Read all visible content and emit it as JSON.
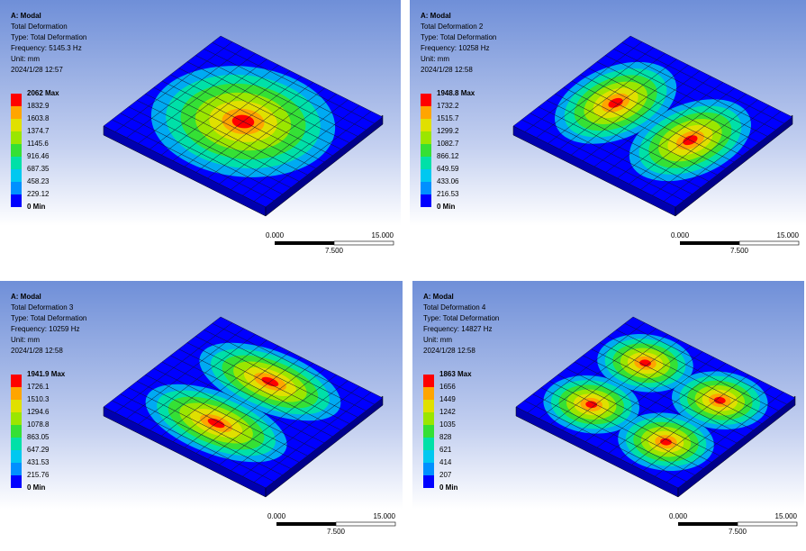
{
  "panels": [
    {
      "header": {
        "analysis": "A: Modal",
        "result": "Total Deformation",
        "type": "Type: Total Deformation",
        "frequency": "Frequency: 5145.3 Hz",
        "unit": "Unit: mm",
        "date": "2024/1/28 12:57"
      },
      "legend": [
        "2062 Max",
        "1832.9",
        "1603.8",
        "1374.7",
        "1145.6",
        "916.46",
        "687.35",
        "458.23",
        "229.12",
        "0 Min"
      ],
      "scale": {
        "start": "0.000",
        "end": "15.000",
        "mid": "7.500"
      }
    },
    {
      "header": {
        "analysis": "A: Modal",
        "result": "Total Deformation 2",
        "type": "Type: Total Deformation",
        "frequency": "Frequency: 10258 Hz",
        "unit": "Unit: mm",
        "date": "2024/1/28 12:58"
      },
      "legend": [
        "1948.8 Max",
        "1732.2",
        "1515.7",
        "1299.2",
        "1082.7",
        "866.12",
        "649.59",
        "433.06",
        "216.53",
        "0 Min"
      ],
      "scale": {
        "start": "0.000",
        "end": "15.000",
        "mid": "7.500"
      }
    },
    {
      "header": {
        "analysis": "A: Modal",
        "result": "Total Deformation 3",
        "type": "Type: Total Deformation",
        "frequency": "Frequency: 10259 Hz",
        "unit": "Unit: mm",
        "date": "2024/1/28 12:58"
      },
      "legend": [
        "1941.9 Max",
        "1726.1",
        "1510.3",
        "1294.6",
        "1078.8",
        "863.05",
        "647.29",
        "431.53",
        "215.76",
        "0 Min"
      ],
      "scale": {
        "start": "0.000",
        "end": "15.000",
        "mid": "7.500"
      }
    },
    {
      "header": {
        "analysis": "A: Modal",
        "result": "Total Deformation 4",
        "type": "Type: Total Deformation",
        "frequency": "Frequency: 14827 Hz",
        "unit": "Unit: mm",
        "date": "2024/1/28 12:58"
      },
      "legend": [
        "1863 Max",
        "1656",
        "1449",
        "1242",
        "1035",
        "828",
        "621",
        "414",
        "207",
        "0 Min"
      ],
      "scale": {
        "start": "0.000",
        "end": "15.000",
        "mid": "7.500"
      }
    }
  ]
}
